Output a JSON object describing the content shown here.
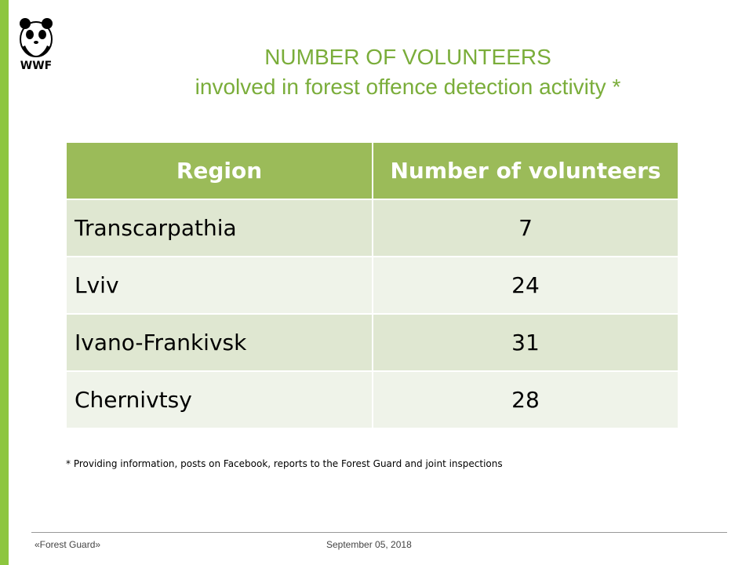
{
  "logo": {
    "text": "WWF",
    "icon": "panda-icon"
  },
  "title": {
    "line1": "NUMBER OF VOLUNTEERS",
    "line2": "involved in forest offence detection activity *"
  },
  "table": {
    "headers": [
      "Region",
      "Number of volunteers"
    ],
    "rows": [
      {
        "region": "Transcarpathia",
        "volunteers": "7"
      },
      {
        "region": "Lviv",
        "volunteers": "24"
      },
      {
        "region": "Ivano-Frankivsk",
        "volunteers": "31"
      },
      {
        "region": "Chernivtsy",
        "volunteers": "28"
      }
    ]
  },
  "footnote": "*  Providing information, posts on Facebook, reports to the Forest Guard and joint inspections",
  "footer": {
    "left": "«Forest Guard»",
    "date": "September 05, 2018"
  },
  "colors": {
    "accent_green": "#8dc63f",
    "header_green": "#9bbb59",
    "title_green": "#7aad3a"
  }
}
